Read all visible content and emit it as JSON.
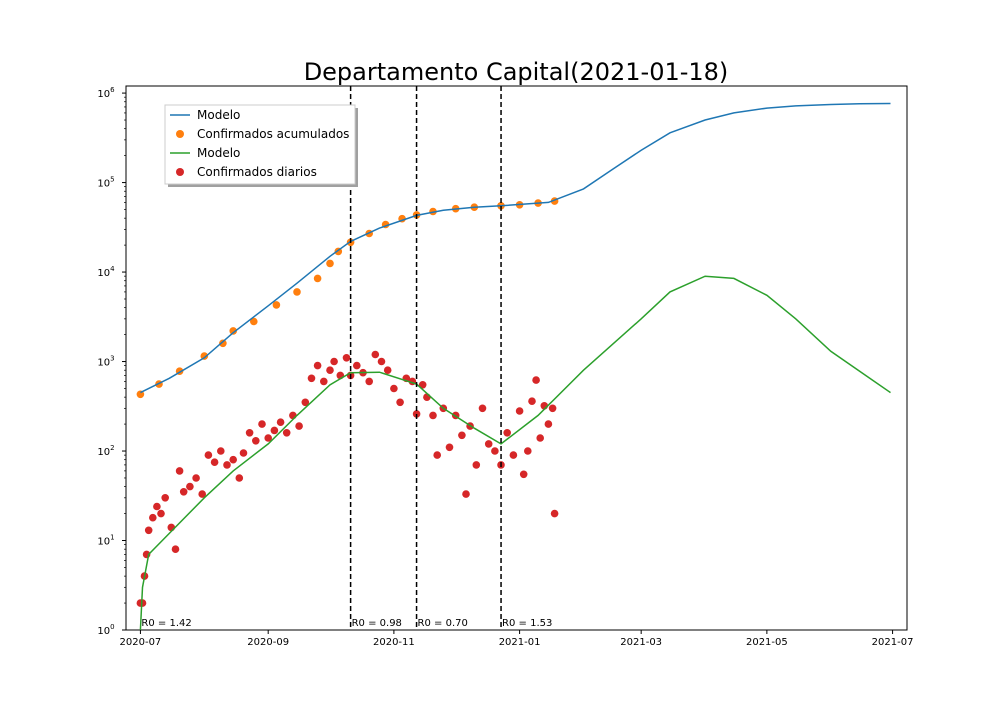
{
  "chart_data": {
    "type": "line",
    "title": "Departamento Capital(2021-01-18)",
    "xlabel": "",
    "ylabel": "",
    "yscale": "log",
    "xlim": [
      "2020-06-24",
      "2021-07-08"
    ],
    "ylim": [
      1,
      1200000
    ],
    "x_ticks": [
      "2020-07",
      "2020-09",
      "2020-11",
      "2021-01",
      "2021-03",
      "2021-05",
      "2021-07"
    ],
    "y_ticks": [
      {
        "value": 1,
        "label": "10^0"
      },
      {
        "value": 10,
        "label": "10^1"
      },
      {
        "value": 100,
        "label": "10^2"
      },
      {
        "value": 1000,
        "label": "10^3"
      },
      {
        "value": 10000,
        "label": "10^4"
      },
      {
        "value": 100000,
        "label": "10^5"
      },
      {
        "value": 1000000,
        "label": "10^6"
      }
    ],
    "grid": false,
    "legend": {
      "position": "upper-left",
      "entries": [
        {
          "label": "Modelo",
          "marker": "line",
          "color": "#1f77b4"
        },
        {
          "label": "Confirmados acumulados",
          "marker": "dot",
          "color": "#ff7f0e"
        },
        {
          "label": "Modelo",
          "marker": "line",
          "color": "#2ca02c"
        },
        {
          "label": "Confirmados diarios",
          "marker": "dot",
          "color": "#d62728"
        }
      ]
    },
    "vlines": [
      {
        "x": "2020-10-11",
        "label": "R0 = 0.98"
      },
      {
        "x": "2020-11-12",
        "label": "R0 = 0.70"
      },
      {
        "x": "2020-12-23",
        "label": "R0 = 1.53"
      }
    ],
    "annotations": [
      {
        "x": "2020-07-01",
        "text": "R0 = 1.42"
      }
    ],
    "series": [
      {
        "name": "Modelo",
        "kind": "line",
        "color": "#1f77b4",
        "points": [
          [
            "2020-07-01",
            450
          ],
          [
            "2020-07-15",
            650
          ],
          [
            "2020-08-01",
            1100
          ],
          [
            "2020-08-15",
            2100
          ],
          [
            "2020-09-01",
            4200
          ],
          [
            "2020-09-15",
            7500
          ],
          [
            "2020-10-01",
            15000
          ],
          [
            "2020-10-11",
            22000
          ],
          [
            "2020-10-25",
            31000
          ],
          [
            "2020-11-12",
            43000
          ],
          [
            "2020-11-25",
            49000
          ],
          [
            "2020-12-10",
            53000
          ],
          [
            "2020-12-23",
            55000
          ],
          [
            "2021-01-15",
            60000
          ],
          [
            "2021-02-01",
            85000
          ],
          [
            "2021-02-15",
            140000
          ],
          [
            "2021-03-01",
            230000
          ],
          [
            "2021-03-15",
            360000
          ],
          [
            "2021-04-01",
            500000
          ],
          [
            "2021-04-15",
            600000
          ],
          [
            "2021-05-01",
            680000
          ],
          [
            "2021-05-15",
            720000
          ],
          [
            "2021-06-01",
            745000
          ],
          [
            "2021-06-15",
            760000
          ],
          [
            "2021-06-30",
            765000
          ]
        ]
      },
      {
        "name": "Confirmados acumulados",
        "kind": "scatter",
        "color": "#ff7f0e",
        "points": [
          [
            "2020-07-01",
            430
          ],
          [
            "2020-07-10",
            560
          ],
          [
            "2020-07-20",
            780
          ],
          [
            "2020-08-01",
            1150
          ],
          [
            "2020-08-10",
            1600
          ],
          [
            "2020-08-15",
            2200
          ],
          [
            "2020-08-25",
            2800
          ],
          [
            "2020-09-05",
            4300
          ],
          [
            "2020-09-15",
            6000
          ],
          [
            "2020-09-25",
            8500
          ],
          [
            "2020-10-01",
            12500
          ],
          [
            "2020-10-05",
            17000
          ],
          [
            "2020-10-11",
            21500
          ],
          [
            "2020-10-20",
            27000
          ],
          [
            "2020-10-28",
            34000
          ],
          [
            "2020-11-05",
            39500
          ],
          [
            "2020-11-12",
            43500
          ],
          [
            "2020-11-20",
            47500
          ],
          [
            "2020-12-01",
            51000
          ],
          [
            "2020-12-10",
            53000
          ],
          [
            "2020-12-23",
            55000
          ],
          [
            "2021-01-01",
            56500
          ],
          [
            "2021-01-10",
            59000
          ],
          [
            "2021-01-18",
            62000
          ]
        ]
      },
      {
        "name": "Modelo",
        "kind": "line",
        "color": "#2ca02c",
        "points": [
          [
            "2020-07-01",
            1
          ],
          [
            "2020-07-02",
            3
          ],
          [
            "2020-07-05",
            7
          ],
          [
            "2020-07-15",
            12
          ],
          [
            "2020-08-01",
            30
          ],
          [
            "2020-08-15",
            60
          ],
          [
            "2020-09-01",
            120
          ],
          [
            "2020-09-15",
            250
          ],
          [
            "2020-10-01",
            550
          ],
          [
            "2020-10-11",
            750
          ],
          [
            "2020-10-25",
            760
          ],
          [
            "2020-11-12",
            560
          ],
          [
            "2020-11-25",
            300
          ],
          [
            "2020-12-10",
            180
          ],
          [
            "2020-12-23",
            120
          ],
          [
            "2021-01-10",
            250
          ],
          [
            "2021-02-01",
            800
          ],
          [
            "2021-03-01",
            3000
          ],
          [
            "2021-03-15",
            6000
          ],
          [
            "2021-04-01",
            9000
          ],
          [
            "2021-04-15",
            8500
          ],
          [
            "2021-05-01",
            5500
          ],
          [
            "2021-05-15",
            3000
          ],
          [
            "2021-06-01",
            1300
          ],
          [
            "2021-06-30",
            450
          ]
        ]
      },
      {
        "name": "Confirmados diarios",
        "kind": "scatter",
        "color": "#d62728",
        "points": [
          [
            "2020-07-01",
            2
          ],
          [
            "2020-07-02",
            2
          ],
          [
            "2020-07-03",
            4
          ],
          [
            "2020-07-04",
            7
          ],
          [
            "2020-07-05",
            13
          ],
          [
            "2020-07-07",
            18
          ],
          [
            "2020-07-09",
            24
          ],
          [
            "2020-07-11",
            20
          ],
          [
            "2020-07-13",
            30
          ],
          [
            "2020-07-16",
            14
          ],
          [
            "2020-07-18",
            8
          ],
          [
            "2020-07-20",
            60
          ],
          [
            "2020-07-22",
            35
          ],
          [
            "2020-07-25",
            40
          ],
          [
            "2020-07-28",
            50
          ],
          [
            "2020-07-31",
            33
          ],
          [
            "2020-08-03",
            90
          ],
          [
            "2020-08-06",
            75
          ],
          [
            "2020-08-09",
            100
          ],
          [
            "2020-08-12",
            70
          ],
          [
            "2020-08-15",
            80
          ],
          [
            "2020-08-18",
            50
          ],
          [
            "2020-08-20",
            95
          ],
          [
            "2020-08-23",
            160
          ],
          [
            "2020-08-26",
            130
          ],
          [
            "2020-08-29",
            200
          ],
          [
            "2020-09-01",
            140
          ],
          [
            "2020-09-04",
            170
          ],
          [
            "2020-09-07",
            210
          ],
          [
            "2020-09-10",
            160
          ],
          [
            "2020-09-13",
            250
          ],
          [
            "2020-09-16",
            190
          ],
          [
            "2020-09-19",
            350
          ],
          [
            "2020-09-22",
            650
          ],
          [
            "2020-09-25",
            900
          ],
          [
            "2020-09-28",
            600
          ],
          [
            "2020-10-01",
            800
          ],
          [
            "2020-10-03",
            1000
          ],
          [
            "2020-10-06",
            700
          ],
          [
            "2020-10-09",
            1100
          ],
          [
            "2020-10-11",
            700
          ],
          [
            "2020-10-14",
            900
          ],
          [
            "2020-10-17",
            750
          ],
          [
            "2020-10-20",
            600
          ],
          [
            "2020-10-23",
            1200
          ],
          [
            "2020-10-26",
            1000
          ],
          [
            "2020-10-29",
            800
          ],
          [
            "2020-11-01",
            500
          ],
          [
            "2020-11-04",
            350
          ],
          [
            "2020-11-07",
            650
          ],
          [
            "2020-11-10",
            600
          ],
          [
            "2020-11-12",
            260
          ],
          [
            "2020-11-15",
            550
          ],
          [
            "2020-11-17",
            400
          ],
          [
            "2020-11-20",
            250
          ],
          [
            "2020-11-22",
            90
          ],
          [
            "2020-11-25",
            300
          ],
          [
            "2020-11-28",
            110
          ],
          [
            "2020-12-01",
            250
          ],
          [
            "2020-12-04",
            150
          ],
          [
            "2020-12-06",
            33
          ],
          [
            "2020-12-08",
            190
          ],
          [
            "2020-12-11",
            70
          ],
          [
            "2020-12-14",
            300
          ],
          [
            "2020-12-17",
            120
          ],
          [
            "2020-12-20",
            100
          ],
          [
            "2020-12-23",
            70
          ],
          [
            "2020-12-26",
            160
          ],
          [
            "2020-12-29",
            90
          ],
          [
            "2021-01-01",
            280
          ],
          [
            "2021-01-03",
            55
          ],
          [
            "2021-01-05",
            100
          ],
          [
            "2021-01-07",
            360
          ],
          [
            "2021-01-09",
            620
          ],
          [
            "2021-01-11",
            140
          ],
          [
            "2021-01-13",
            320
          ],
          [
            "2021-01-15",
            200
          ],
          [
            "2021-01-17",
            300
          ],
          [
            "2021-01-18",
            20
          ]
        ]
      }
    ]
  }
}
